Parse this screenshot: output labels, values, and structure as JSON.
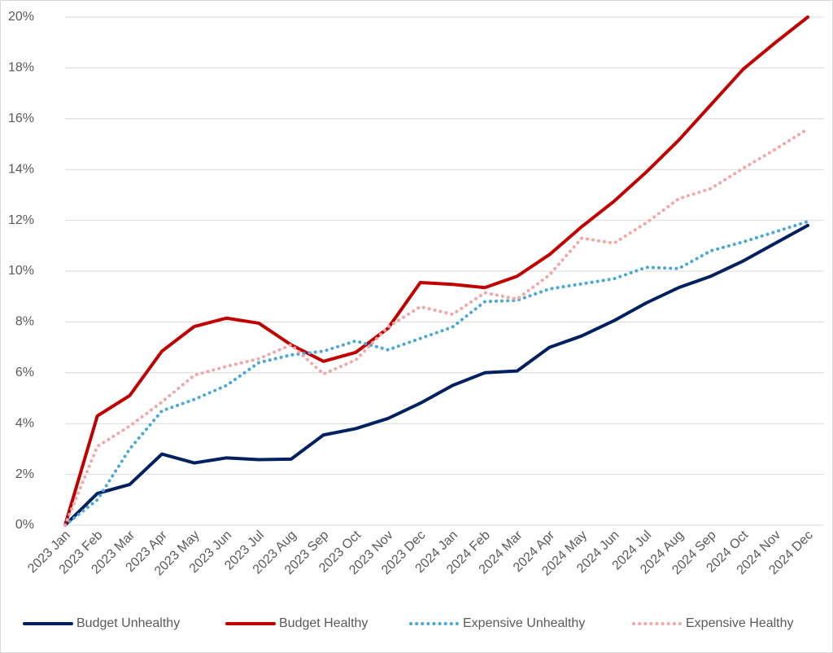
{
  "chart_data": {
    "type": "line",
    "categories": [
      "2023 Jan",
      "2023 Feb",
      "2023 Mar",
      "2023 Apr",
      "2023 May",
      "2023 Jun",
      "2023 Jul",
      "2023 Aug",
      "2023 Sep",
      "2023 Oct",
      "2023 Nov",
      "2023 Dec",
      "2024 Jan",
      "2024 Feb",
      "2024 Mar",
      "2024 Apr",
      "2024 May",
      "2024 Jun",
      "2024 Jul",
      "2024 Aug",
      "2024 Sep",
      "2024 Oct",
      "2024 Nov",
      "2024 Dec"
    ],
    "series": [
      {
        "name": "Budget Unhealthy",
        "color": "#002060",
        "dash": "solid",
        "values": [
          0,
          1.25,
          1.6,
          2.8,
          2.45,
          2.65,
          2.58,
          2.6,
          3.55,
          3.8,
          4.2,
          4.8,
          5.5,
          6.0,
          6.07,
          7.0,
          7.45,
          8.05,
          8.75,
          9.35,
          9.8,
          10.4,
          11.1,
          11.8
        ]
      },
      {
        "name": "Budget Healthy",
        "color": "#c00000",
        "dash": "solid",
        "values": [
          0,
          4.3,
          5.1,
          6.85,
          7.82,
          8.15,
          7.95,
          7.1,
          6.45,
          6.8,
          7.75,
          9.55,
          9.48,
          9.35,
          9.8,
          10.65,
          11.75,
          12.75,
          13.9,
          15.15,
          16.55,
          17.95,
          19.0,
          20.0
        ]
      },
      {
        "name": "Expensive Unhealthy",
        "color": "#4aa8d8",
        "dash": "dotted",
        "values": [
          0,
          1.0,
          3.0,
          4.5,
          4.95,
          5.5,
          6.4,
          6.7,
          6.85,
          7.25,
          6.9,
          7.35,
          7.8,
          8.8,
          8.85,
          9.3,
          9.5,
          9.7,
          10.15,
          10.1,
          10.8,
          11.15,
          11.55,
          11.95
        ]
      },
      {
        "name": "Expensive Healthy",
        "color": "#f4a6a6",
        "dash": "dotted",
        "values": [
          0,
          3.1,
          3.9,
          4.85,
          5.9,
          6.25,
          6.55,
          7.1,
          5.95,
          6.5,
          7.8,
          8.6,
          8.3,
          9.15,
          8.9,
          9.85,
          11.3,
          11.1,
          11.9,
          12.85,
          13.25,
          14.05,
          14.8,
          15.6
        ]
      }
    ],
    "ylim": [
      0,
      20
    ],
    "yticks": [
      {
        "value": 0,
        "label": "0%"
      },
      {
        "value": 2,
        "label": "2%"
      },
      {
        "value": 4,
        "label": "4%"
      },
      {
        "value": 6,
        "label": "6%"
      },
      {
        "value": 8,
        "label": "8%"
      },
      {
        "value": 10,
        "label": "10%"
      },
      {
        "value": 12,
        "label": "12%"
      },
      {
        "value": 14,
        "label": "14%"
      },
      {
        "value": 16,
        "label": "16%"
      },
      {
        "value": 18,
        "label": "18%"
      },
      {
        "value": 20,
        "label": "20%"
      }
    ],
    "grid": true,
    "legend": "bottom"
  }
}
